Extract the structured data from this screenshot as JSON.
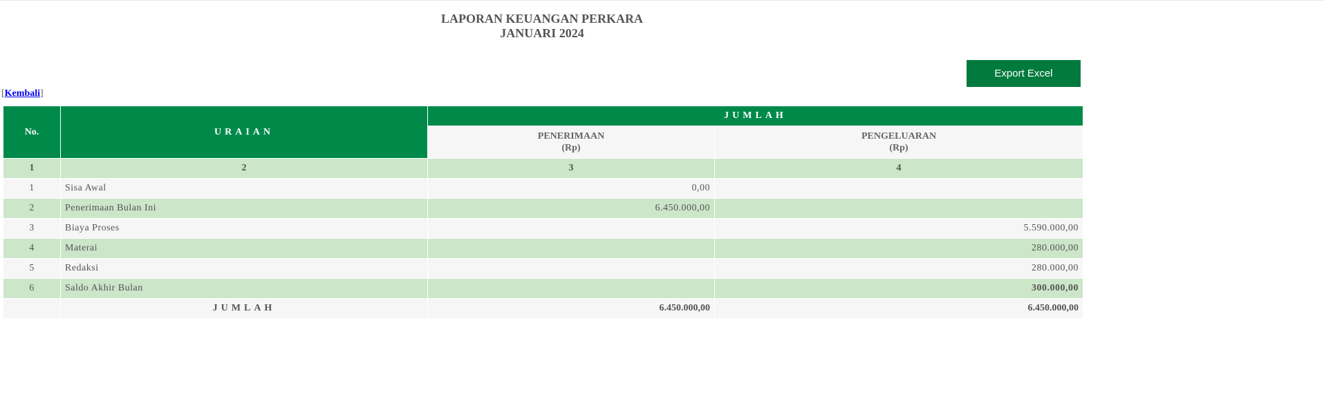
{
  "title": {
    "line1": "LAPORAN KEUANGAN PERKARA",
    "line2": "JANUARI 2024"
  },
  "export_label": "Export Excel",
  "back": {
    "open": "[",
    "label": "Kembali",
    "close": "]"
  },
  "headers": {
    "no": "No.",
    "uraian": "URAIAN",
    "jumlah": "JUMLAH",
    "penerimaan": "PENERIMAAN",
    "penerimaan_unit": "(Rp)",
    "pengeluaran": "PENGELUARAN",
    "pengeluaran_unit": "(Rp)"
  },
  "col_numbers": [
    "1",
    "2",
    "3",
    "4"
  ],
  "rows": [
    {
      "no": "1",
      "uraian": "Sisa Awal",
      "penerimaan": "0,00",
      "pengeluaran": ""
    },
    {
      "no": "2",
      "uraian": "Penerimaan Bulan Ini",
      "penerimaan": "6.450.000,00",
      "pengeluaran": ""
    },
    {
      "no": "3",
      "uraian": "Biaya Proses",
      "penerimaan": "",
      "pengeluaran": "5.590.000,00"
    },
    {
      "no": "4",
      "uraian": "Materai",
      "penerimaan": "",
      "pengeluaran": "280.000,00"
    },
    {
      "no": "5",
      "uraian": "Redaksi",
      "penerimaan": "",
      "pengeluaran": "280.000,00"
    },
    {
      "no": "6",
      "uraian": "Saldo Akhir Bulan",
      "penerimaan": "",
      "pengeluaran": "300.000,00"
    }
  ],
  "total": {
    "label": "JUMLAH",
    "penerimaan": "6.450.000,00",
    "pengeluaran": "6.450.000,00"
  },
  "colors": {
    "header_green": "#008a4a",
    "row_green": "#cbe6c9",
    "button_green": "#007a3d"
  }
}
